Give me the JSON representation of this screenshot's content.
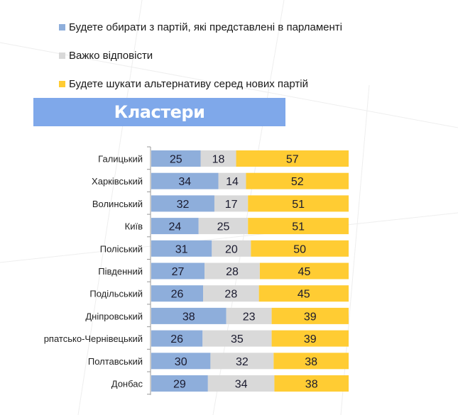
{
  "chart_data": {
    "type": "bar",
    "orientation": "horizontal",
    "stacked": true,
    "title": "Кластери",
    "categories": [
      "Галицький",
      "Харківський",
      "Волинський",
      "Київ",
      "Поліський",
      "Південний",
      "Подільський",
      "Дніпровський",
      "рпатсько-Чернівецький",
      "Полтавський",
      "Донбас"
    ],
    "series": [
      {
        "name": "Будете обирати з партій, які представлені в парламенті",
        "color": "#8eaedb",
        "values": [
          25,
          34,
          32,
          24,
          31,
          27,
          26,
          38,
          26,
          30,
          29
        ]
      },
      {
        "name": "Важко відповісти",
        "color": "#d9d9d9",
        "values": [
          18,
          14,
          17,
          25,
          20,
          28,
          28,
          23,
          35,
          32,
          34
        ]
      },
      {
        "name": "Будете шукати альтернативу серед нових партій",
        "color": "#ffcc33",
        "values": [
          57,
          52,
          51,
          51,
          50,
          45,
          45,
          39,
          39,
          38,
          38
        ]
      }
    ],
    "xlim": [
      0,
      100
    ],
    "legend_position": "top-left",
    "grid": false
  }
}
